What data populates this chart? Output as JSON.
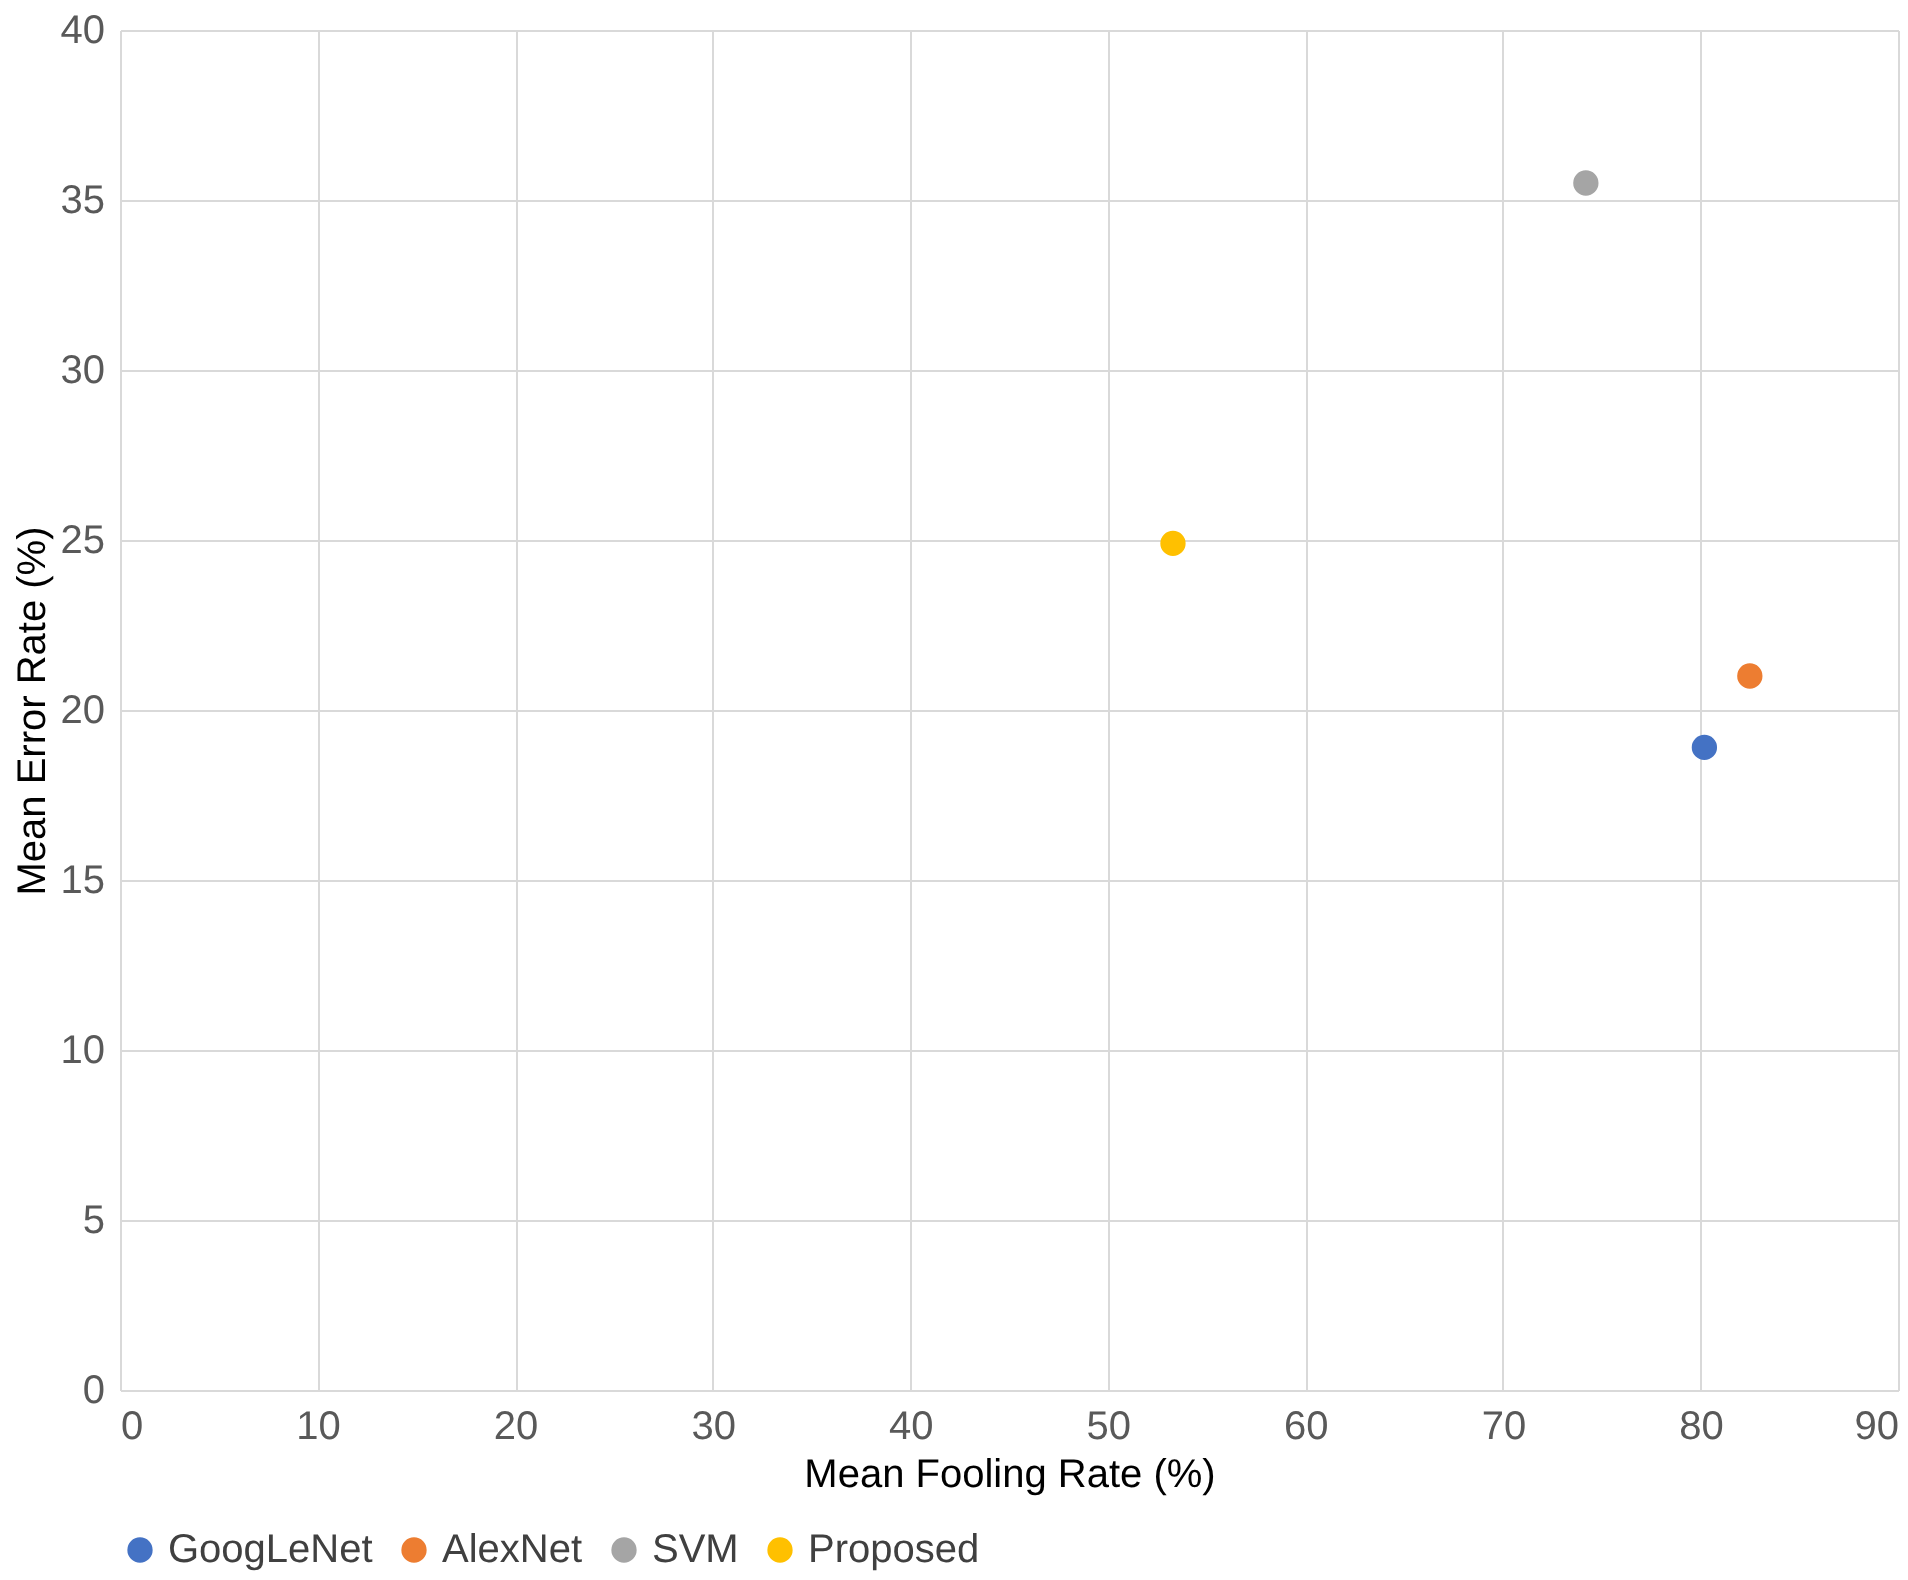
{
  "chart_data": {
    "type": "scatter",
    "xlabel": "Mean Fooling Rate (%)",
    "ylabel": "Mean Error Rate (%)",
    "xlim": [
      0,
      90
    ],
    "xticks": [
      0,
      10,
      20,
      30,
      40,
      50,
      60,
      70,
      80,
      90
    ],
    "ylim": [
      0,
      40
    ],
    "yticks": [
      0,
      5,
      10,
      15,
      20,
      25,
      30,
      35,
      40
    ],
    "grid": true,
    "legend": "bottom",
    "marker": "circle",
    "series": [
      {
        "name": "GoogLeNet",
        "color": "#4472c4",
        "x": [
          80.2
        ],
        "values": [
          18.9
        ]
      },
      {
        "name": "AlexNet",
        "color": "#ed7d31",
        "x": [
          82.5
        ],
        "values": [
          21.0
        ]
      },
      {
        "name": "SVM",
        "color": "#a5a5a5",
        "x": [
          74.2
        ],
        "values": [
          35.5
        ]
      },
      {
        "name": "Proposed",
        "color": "#ffc000",
        "x": [
          53.3
        ],
        "values": [
          24.9
        ]
      }
    ]
  }
}
